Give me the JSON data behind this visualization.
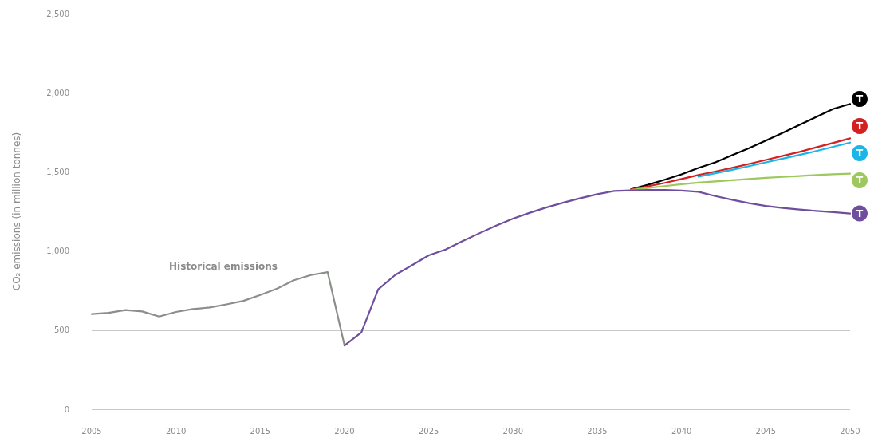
{
  "chart_data": {
    "type": "line",
    "ylabel": "CO₂ emissions (in million tonnes)",
    "xlim": [
      2005,
      2050
    ],
    "xticks": [
      2005,
      2010,
      2015,
      2020,
      2025,
      2030,
      2035,
      2040,
      2045,
      2050
    ],
    "ylim": [
      0,
      2500
    ],
    "yticks": [
      0,
      500,
      {
        "value": 1000,
        "label": "1,000"
      },
      {
        "value": 1500,
        "label": "1,500"
      },
      {
        "value": 2000,
        "label": "2,000"
      },
      {
        "value": 2500,
        "label": "2,500"
      }
    ],
    "grid": "y",
    "legend": "right",
    "annotations": [
      "Historical emissions"
    ],
    "series": [
      {
        "color": "#8a8f8a",
        "x": [
          2005,
          2006,
          2007,
          2008,
          2009,
          2010,
          2011,
          2012,
          2013,
          2014,
          2015,
          2016,
          2017,
          2018,
          2019,
          2020
        ],
        "values": [
          602,
          609,
          627,
          618,
          586,
          615,
          633,
          643,
          663,
          685,
          722,
          762,
          815,
          848,
          866,
          403
        ]
      },
      {
        "name": "T",
        "color": "#000000",
        "x": [
          2037,
          2038,
          2039,
          2040,
          2041,
          2042,
          2043,
          2044,
          2045,
          2046,
          2047,
          2048,
          2049,
          2050
        ],
        "values": [
          1390,
          1418,
          1450,
          1484,
          1525,
          1560,
          1605,
          1649,
          1697,
          1747,
          1797,
          1847,
          1898,
          1929
        ]
      },
      {
        "name": "T",
        "color": "#d42020",
        "x": [
          2037,
          2038,
          2039,
          2040,
          2041,
          2042,
          2043,
          2044,
          2045,
          2046,
          2047,
          2048,
          2049,
          2050
        ],
        "values": [
          1388,
          1409,
          1430,
          1455,
          1480,
          1502,
          1525,
          1550,
          1575,
          1601,
          1626,
          1655,
          1683,
          1712
        ]
      },
      {
        "name": "T",
        "color": "#1bb5e8",
        "x": [
          2041,
          2042,
          2043,
          2044,
          2045,
          2046,
          2047,
          2048,
          2049,
          2050
        ],
        "values": [
          1470,
          1491,
          1513,
          1536,
          1560,
          1583,
          1607,
          1632,
          1658,
          1685
        ]
      },
      {
        "name": "T",
        "color": "#9cc85c",
        "x": [
          2037,
          2038,
          2039,
          2040,
          2041,
          2042,
          2043,
          2044,
          2045,
          2046,
          2047,
          2048,
          2049,
          2050
        ],
        "values": [
          1385,
          1398,
          1410,
          1422,
          1432,
          1440,
          1447,
          1455,
          1462,
          1468,
          1474,
          1480,
          1485,
          1489
        ]
      },
      {
        "name": "T",
        "color": "#6f4e9e",
        "x": [
          2020,
          2021,
          2022,
          2023,
          2024,
          2025,
          2026,
          2027,
          2028,
          2029,
          2030,
          2031,
          2032,
          2033,
          2034,
          2035,
          2036,
          2037,
          2038,
          2039,
          2040,
          2041,
          2042,
          2043,
          2044,
          2045,
          2046,
          2047,
          2048,
          2049,
          2050
        ],
        "values": [
          403,
          486,
          758,
          848,
          910,
          973,
          1009,
          1062,
          1112,
          1160,
          1205,
          1242,
          1276,
          1306,
          1334,
          1359,
          1379,
          1383,
          1385,
          1386,
          1382,
          1374,
          1347,
          1324,
          1302,
          1285,
          1272,
          1262,
          1253,
          1246,
          1237
        ]
      }
    ]
  }
}
